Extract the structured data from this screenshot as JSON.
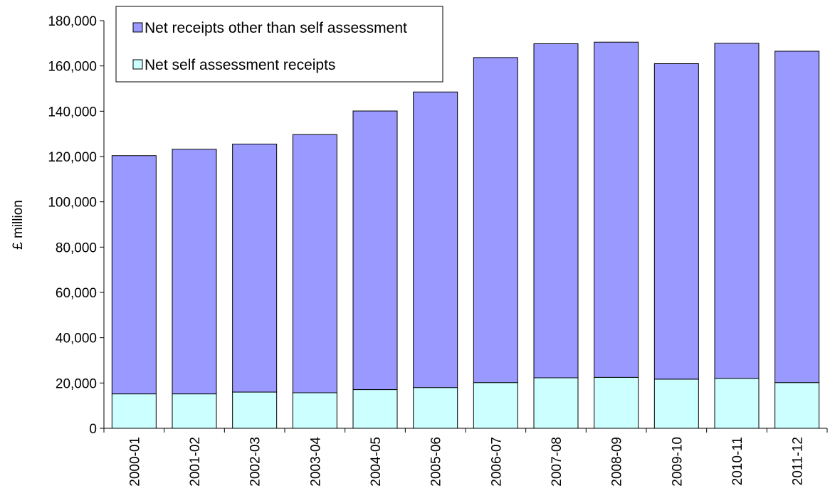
{
  "chart_data": {
    "type": "bar",
    "stacked": true,
    "categories": [
      "2000-01",
      "2001-02",
      "2002-03",
      "2003-04",
      "2004-05",
      "2005-06",
      "2006-07",
      "2007-08",
      "2008-09",
      "2009-10",
      "2010-11",
      "2011-12"
    ],
    "series": [
      {
        "name": "Net self assessment receipts",
        "color": "#ccffff",
        "values": [
          15200,
          15200,
          16000,
          15700,
          17100,
          18000,
          20200,
          22300,
          22500,
          21700,
          22000,
          20200
        ]
      },
      {
        "name": "Net receipts other than self assessment",
        "color": "#9999ff",
        "values": [
          105200,
          108000,
          109500,
          114000,
          123000,
          130500,
          143500,
          147500,
          148000,
          139300,
          148000,
          146300
        ]
      }
    ],
    "ylabel": "£ million",
    "ylim": [
      0,
      180000
    ],
    "yticks": [
      "0",
      "20,000",
      "40,000",
      "60,000",
      "80,000",
      "100,000",
      "120,000",
      "140,000",
      "160,000",
      "180,000"
    ],
    "legend": {
      "placement": "top-left",
      "entries": [
        "Net receipts other than self assessment",
        "Net self assessment receipts"
      ]
    },
    "grid": false
  }
}
